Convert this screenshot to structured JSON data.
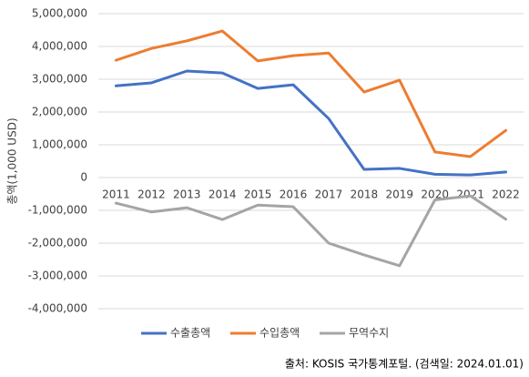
{
  "chart_data": {
    "type": "line",
    "y_label": "총액(1,000 USD)",
    "source": "출처: KOSIS 국가통계포털. (검색일: 2024.01.01)",
    "categories": [
      "2011",
      "2012",
      "2013",
      "2014",
      "2015",
      "2016",
      "2017",
      "2018",
      "2019",
      "2020",
      "2021",
      "2022"
    ],
    "series": [
      {
        "name": "수출총액",
        "color": "#4472c4",
        "values": [
          2800000,
          2890000,
          3250000,
          3190000,
          2720000,
          2830000,
          1800000,
          250000,
          280000,
          100000,
          80000,
          170000
        ]
      },
      {
        "name": "수입총액",
        "color": "#ed7d31",
        "values": [
          3580000,
          3940000,
          4170000,
          4470000,
          3560000,
          3720000,
          3800000,
          2610000,
          2970000,
          780000,
          640000,
          1440000
        ]
      },
      {
        "name": "무역수지",
        "color": "#a5a5a5",
        "values": [
          -780000,
          -1050000,
          -920000,
          -1280000,
          -840000,
          -890000,
          -2000000,
          -2360000,
          -2690000,
          -680000,
          -560000,
          -1270000
        ]
      }
    ],
    "ylim": [
      -4000000,
      5000000
    ],
    "yticks": [
      {
        "value": -4000000,
        "label": "-4,000,000"
      },
      {
        "value": -3000000,
        "label": "-3,000,000"
      },
      {
        "value": -2000000,
        "label": "-2,000,000"
      },
      {
        "value": -1000000,
        "label": "-1,000,000"
      },
      0,
      {
        "value": 1000000,
        "label": "1,000,000"
      },
      {
        "value": 2000000,
        "label": "2,000,000"
      },
      {
        "value": 3000000,
        "label": "3,000,000"
      },
      {
        "value": 4000000,
        "label": "4,000,000"
      },
      {
        "value": 5000000,
        "label": "5,000,000"
      }
    ],
    "grid": true,
    "legend": "bottom"
  }
}
